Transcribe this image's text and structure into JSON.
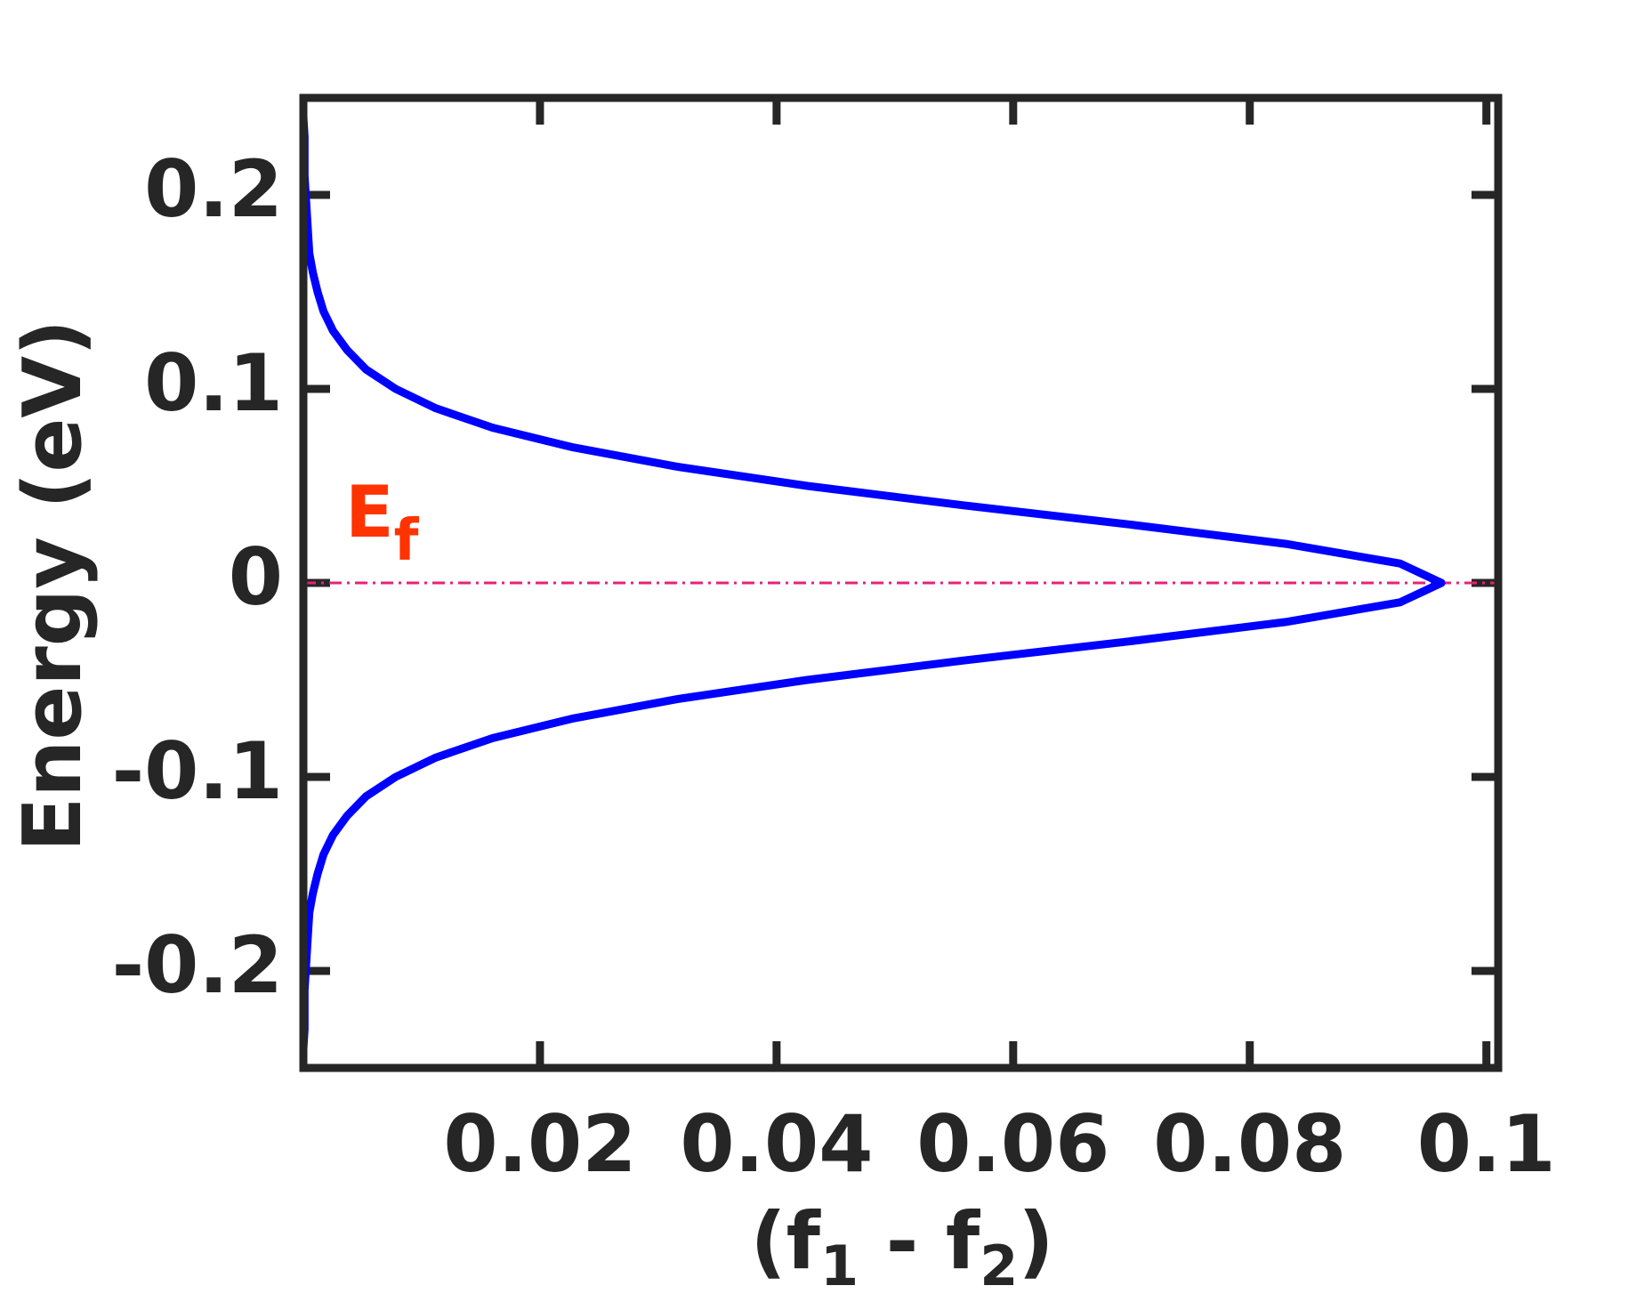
{
  "chart_data": {
    "type": "line",
    "xlabel_parts": [
      "(f",
      "1",
      " - f",
      "2",
      ")"
    ],
    "ylabel": "Energy (eV)",
    "x": [
      0.0,
      0.0,
      0.0001,
      0.0001,
      0.0001,
      0.0002,
      0.0003,
      0.0004,
      0.0005,
      0.0008,
      0.0012,
      0.0017,
      0.0025,
      0.0037,
      0.0053,
      0.0078,
      0.0112,
      0.016,
      0.0227,
      0.0315,
      0.0426,
      0.0558,
      0.07,
      0.0832,
      0.0927,
      0.0962,
      0.0927,
      0.0832,
      0.07,
      0.0558,
      0.0426,
      0.0315,
      0.0227,
      0.016,
      0.0112,
      0.0078,
      0.0053,
      0.0037,
      0.0025,
      0.0017,
      0.0012,
      0.0008,
      0.0005,
      0.0004,
      0.0003,
      0.0002,
      0.0001,
      0.0001,
      0.0001,
      0.0,
      0.0
    ],
    "values": [
      -0.25,
      -0.24,
      -0.23,
      -0.22,
      -0.21,
      -0.2,
      -0.19,
      -0.18,
      -0.17,
      -0.16,
      -0.15,
      -0.14,
      -0.13,
      -0.12,
      -0.11,
      -0.1,
      -0.09,
      -0.08,
      -0.07,
      -0.06,
      -0.05,
      -0.04,
      -0.03,
      -0.02,
      -0.01,
      0,
      0.01,
      0.02,
      0.03,
      0.04,
      0.05,
      0.06,
      0.07,
      0.08,
      0.09,
      0.1,
      0.11,
      0.12,
      0.13,
      0.14,
      0.15,
      0.16,
      0.17,
      0.18,
      0.19,
      0.2,
      0.21,
      0.22,
      0.23,
      0.24,
      0.25
    ],
    "color": "#0000ff",
    "xlim": [
      0,
      0.101
    ],
    "xticks": [
      0.02,
      0.04,
      0.06,
      0.08,
      0.1
    ],
    "ylim": [
      -0.25,
      0.25
    ],
    "yticks": [
      -0.2,
      -0.1,
      0,
      0.1,
      0.2
    ],
    "reference_line": {
      "value": 0,
      "color": "#e8207a"
    },
    "annotation": {
      "text": "E",
      "sub": "f",
      "color": "#ff3300"
    }
  }
}
